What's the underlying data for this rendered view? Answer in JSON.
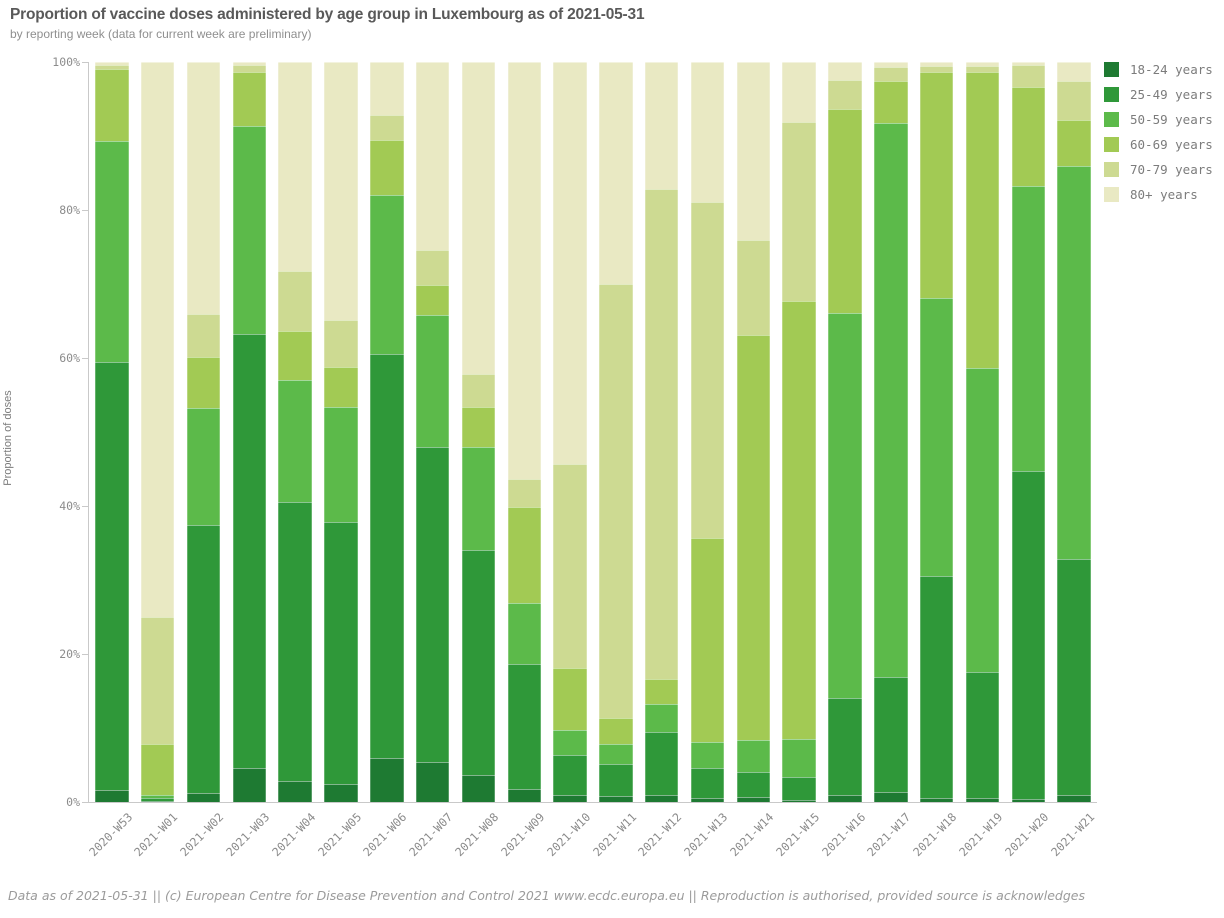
{
  "header": {
    "title": "Proportion of vaccine doses administered by age group in Luxembourg as of 2021-05-31",
    "subtitle": "by reporting week (data for current week are preliminary)"
  },
  "footer": {
    "text": "Data as of 2021-05-31 || (c) European Centre for Disease Prevention and Control 2021 www.ecdc.europa.eu || Reproduction is authorised, provided source is acknowledges"
  },
  "chart_data": {
    "type": "bar",
    "stacked": true,
    "title": "Proportion of vaccine doses administered by age group in Luxembourg as of 2021-05-31",
    "xlabel": "",
    "ylabel": "Proportion of doses",
    "ylim": [
      0,
      100
    ],
    "yticks": [
      0,
      20,
      40,
      60,
      80,
      100
    ],
    "ytick_labels": [
      "0%",
      "20%",
      "40%",
      "60%",
      "80%",
      "100%"
    ],
    "grid": false,
    "legend_position": "top-right",
    "axis_color": "#c9c9c9",
    "categories": [
      "2020-W53",
      "2021-W01",
      "2021-W02",
      "2021-W03",
      "2021-W04",
      "2021-W05",
      "2021-W06",
      "2021-W07",
      "2021-W08",
      "2021-W09",
      "2021-W10",
      "2021-W11",
      "2021-W12",
      "2021-W13",
      "2021-W14",
      "2021-W15",
      "2021-W16",
      "2021-W17",
      "2021-W18",
      "2021-W19",
      "2021-W20",
      "2021-W21"
    ],
    "series": [
      {
        "name": "18-24 years",
        "color": "#1e7a32",
        "values": [
          1.6,
          0.2,
          1.2,
          4.6,
          2.9,
          2.5,
          6.0,
          5.4,
          3.6,
          1.7,
          1.0,
          0.8,
          1.0,
          0.5,
          0.7,
          0.3,
          1.0,
          1.4,
          0.5,
          0.5,
          0.4,
          1.0
        ]
      },
      {
        "name": "25-49 years",
        "color": "#2f9839",
        "values": [
          57.9,
          0.3,
          36.2,
          58.7,
          37.6,
          35.3,
          54.6,
          42.6,
          30.5,
          17.0,
          5.4,
          4.4,
          8.5,
          4.1,
          3.4,
          3.1,
          13.0,
          15.5,
          30.0,
          17.1,
          44.3,
          31.8
        ]
      },
      {
        "name": "50-59 years",
        "color": "#5cba4a",
        "values": [
          29.8,
          0.5,
          15.8,
          28.0,
          16.5,
          15.6,
          21.4,
          17.8,
          13.9,
          8.2,
          3.3,
          2.7,
          3.8,
          3.5,
          4.3,
          5.1,
          52.1,
          74.8,
          37.6,
          41.0,
          38.5,
          53.1
        ]
      },
      {
        "name": "60-69 years",
        "color": "#a2ca54",
        "values": [
          9.7,
          6.9,
          6.9,
          7.4,
          6.7,
          5.4,
          7.5,
          4.1,
          5.4,
          13.0,
          8.4,
          3.4,
          3.3,
          27.6,
          54.7,
          59.2,
          27.5,
          5.8,
          30.6,
          40.0,
          13.4,
          6.3
        ]
      },
      {
        "name": "70-79 years",
        "color": "#cdda92",
        "values": [
          0.6,
          17.1,
          5.9,
          0.9,
          8.1,
          6.3,
          3.3,
          4.7,
          4.5,
          3.8,
          27.6,
          58.7,
          66.3,
          45.4,
          12.9,
          24.2,
          4.0,
          1.8,
          0.7,
          0.9,
          3.0,
          5.2
        ]
      },
      {
        "name": "80+ years",
        "color": "#e9e9c3",
        "values": [
          0.4,
          75.0,
          34.0,
          0.4,
          28.2,
          34.9,
          7.2,
          25.4,
          42.1,
          56.3,
          54.3,
          30.0,
          17.1,
          18.9,
          24.0,
          8.1,
          2.4,
          0.7,
          0.6,
          0.5,
          0.4,
          2.6
        ]
      }
    ]
  }
}
